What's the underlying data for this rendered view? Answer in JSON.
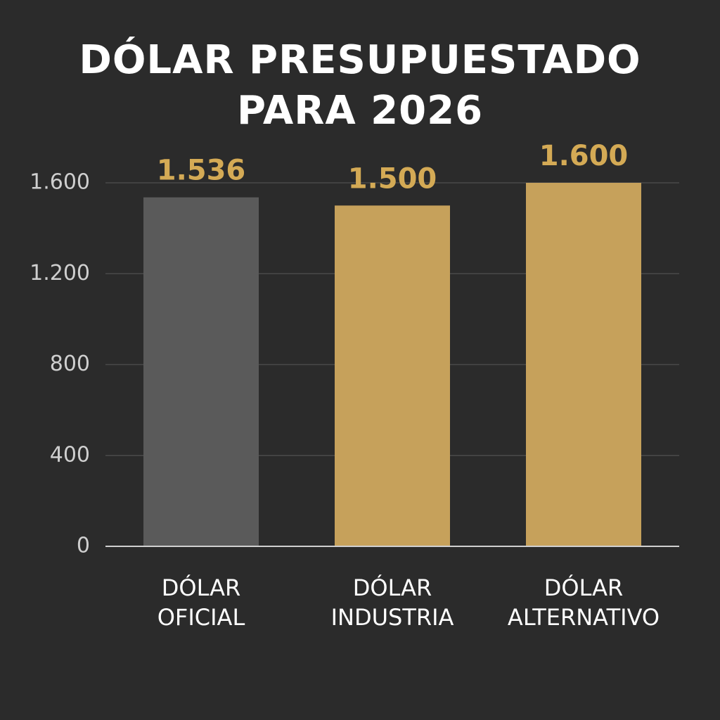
{
  "chart_data": {
    "type": "bar",
    "title": "DÓLAR PRESUPUESTADO PARA 2026",
    "categories": [
      "DÓLAR OFICIAL",
      "DÓLAR INDUSTRIA",
      "DÓLAR ALTERNATIVO"
    ],
    "values": [
      1536,
      1500,
      1600
    ],
    "value_labels": [
      "1.536",
      "1.500",
      "1.600"
    ],
    "colors": [
      "#5a5a5a",
      "#c6a15b",
      "#c6a15b"
    ],
    "ylim": [
      0,
      1600
    ],
    "yticks": [
      0,
      400,
      800,
      {
        "value": 1200,
        "label": "1.200"
      },
      {
        "value": 1600,
        "label": "1.600"
      }
    ],
    "grid": true
  }
}
